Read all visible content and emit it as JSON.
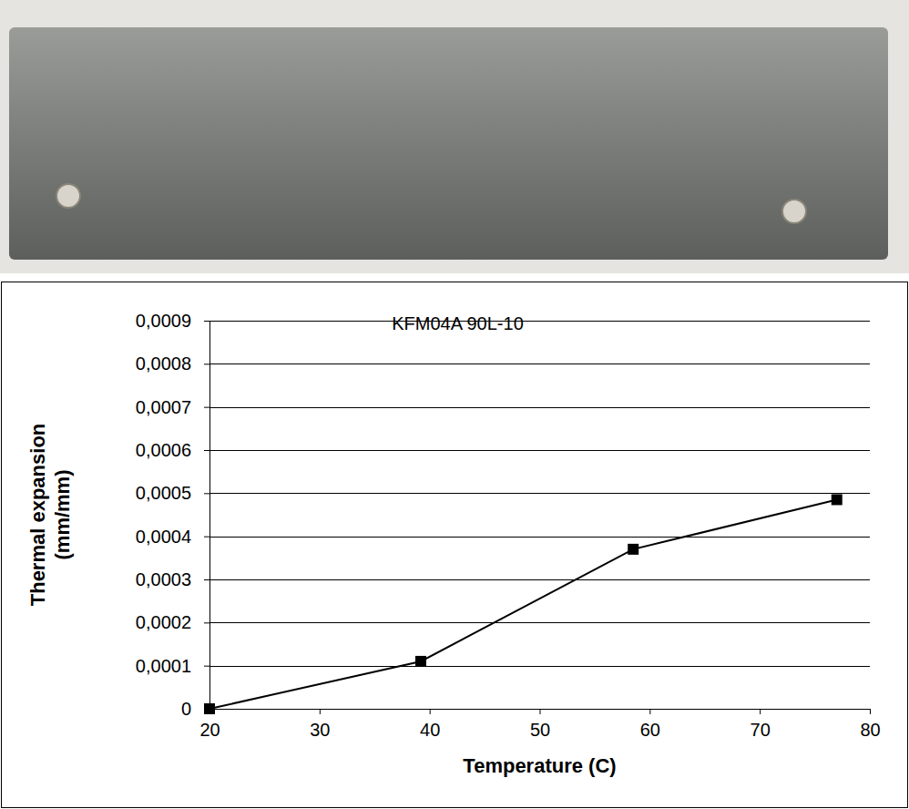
{
  "chart_data": {
    "type": "line",
    "title": "KFM04A 90L-10",
    "x_label": "Temperature (C)",
    "y_label": "Thermal expansion (mm/mm)",
    "x": [
      20,
      39.2,
      58.5,
      77
    ],
    "values": [
      0,
      0.00011,
      0.00037,
      0.000485
    ],
    "color": "#000000",
    "marker": "square",
    "line_style": "solid",
    "xlim": [
      20,
      80
    ],
    "xticks": [
      20,
      30,
      40,
      50,
      60,
      70,
      80
    ],
    "ylim": [
      0,
      0.0009
    ],
    "yticks": [
      0,
      {
        "value": 0.0001,
        "label": "0,0001"
      },
      {
        "value": 0.0002,
        "label": "0,0002"
      },
      {
        "value": 0.0003,
        "label": "0,0003"
      },
      {
        "value": 0.0004,
        "label": "0,0004"
      },
      {
        "value": 0.0005,
        "label": "0,0005"
      },
      {
        "value": 0.0006,
        "label": "0,0006"
      },
      {
        "value": 0.0007,
        "label": "0,0007"
      },
      {
        "value": 0.0008,
        "label": "0,0008"
      },
      {
        "value": 0.0009,
        "label": "0,0009"
      }
    ],
    "grid": true
  }
}
